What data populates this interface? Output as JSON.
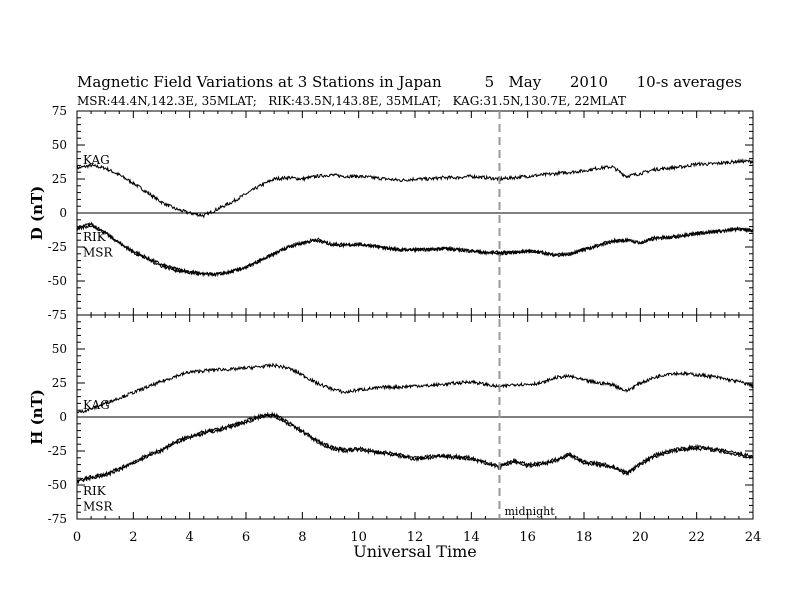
{
  "header": {
    "title_main": "Magnetic Field Variations at 3 Stations in Japan",
    "title_date_day": "5",
    "title_date_month": "May",
    "title_date_year": "2010",
    "title_sampling": "10-s averages",
    "subtitle": "MSR:44.4N,142.3E, 35MLAT;   RIK:43.5N,143.8E, 35MLAT;   KAG:31.5N,130.7E, 22MLAT"
  },
  "chart_data": [
    {
      "type": "line",
      "panel": "D",
      "ylabel": "D (nT)",
      "ylim": [
        -75,
        75
      ],
      "yticks": [
        75,
        50,
        25,
        0,
        -25,
        -50,
        -75
      ],
      "xlim": [
        0,
        24
      ],
      "zero_line": true,
      "series": [
        {
          "name": "KAG",
          "x": [
            0,
            0.5,
            1,
            1.5,
            2,
            2.5,
            3,
            3.5,
            4,
            4.5,
            5,
            5.5,
            6,
            6.5,
            7,
            7.5,
            8,
            8.5,
            9,
            9.5,
            10,
            10.5,
            11,
            11.5,
            12,
            12.5,
            13,
            13.5,
            14,
            14.5,
            15,
            15.5,
            16,
            16.5,
            17,
            17.5,
            18,
            18.5,
            19,
            19.5,
            20,
            20.5,
            21,
            21.5,
            22,
            22.5,
            23,
            23.5,
            24
          ],
          "y": [
            33,
            35,
            33,
            28,
            22,
            15,
            8,
            3,
            0,
            -2,
            3,
            8,
            14,
            20,
            25,
            26,
            25,
            27,
            28,
            27,
            27,
            26,
            25,
            24,
            25,
            25,
            26,
            26,
            27,
            26,
            25,
            26,
            27,
            28,
            29,
            30,
            31,
            33,
            34,
            27,
            29,
            32,
            33,
            34,
            36,
            36,
            37,
            38,
            38
          ]
        },
        {
          "name": "RIK",
          "x": [
            0,
            0.5,
            1,
            1.5,
            2,
            2.5,
            3,
            3.5,
            4,
            4.5,
            5,
            5.5,
            6,
            6.5,
            7,
            7.5,
            8,
            8.5,
            9,
            9.5,
            10,
            10.5,
            11,
            11.5,
            12,
            12.5,
            13,
            13.5,
            14,
            14.5,
            15,
            15.5,
            16,
            16.5,
            17,
            17.5,
            18,
            18.5,
            19,
            19.5,
            20,
            20.5,
            21,
            21.5,
            22,
            22.5,
            23,
            23.5,
            24
          ],
          "y": [
            -11,
            -8,
            -15,
            -22,
            -28,
            -33,
            -38,
            -41,
            -43,
            -45,
            -45,
            -43,
            -40,
            -35,
            -30,
            -25,
            -22,
            -20,
            -23,
            -24,
            -23,
            -24,
            -26,
            -27,
            -27,
            -27,
            -26,
            -27,
            -28,
            -29,
            -29,
            -29,
            -28,
            -29,
            -31,
            -30,
            -27,
            -24,
            -21,
            -20,
            -22,
            -19,
            -18,
            -17,
            -15,
            -14,
            -13,
            -12,
            -13
          ]
        },
        {
          "name": "MSR",
          "x": [
            0,
            0.5,
            1,
            1.5,
            2,
            2.5,
            3,
            3.5,
            4,
            4.5,
            5,
            5.5,
            6,
            6.5,
            7,
            7.5,
            8,
            8.5,
            9,
            9.5,
            10,
            10.5,
            11,
            11.5,
            12,
            12.5,
            13,
            13.5,
            14,
            14.5,
            15,
            15.5,
            16,
            16.5,
            17,
            17.5,
            18,
            18.5,
            19,
            19.5,
            20,
            20.5,
            21,
            21.5,
            22,
            22.5,
            23,
            23.5,
            24
          ],
          "y": [
            -12,
            -9,
            -14,
            -22,
            -29,
            -34,
            -39,
            -42,
            -44,
            -45,
            -45,
            -43,
            -40,
            -35,
            -30,
            -25,
            -22,
            -19,
            -23,
            -23,
            -23,
            -24,
            -26,
            -27,
            -27,
            -27,
            -26,
            -27,
            -28,
            -29,
            -30,
            -29,
            -28,
            -29,
            -31,
            -30,
            -27,
            -24,
            -20,
            -20,
            -22,
            -18,
            -18,
            -16,
            -15,
            -14,
            -13,
            -11,
            -13
          ]
        }
      ],
      "labels": [
        "KAG",
        "RIK",
        "MSR"
      ]
    },
    {
      "type": "line",
      "panel": "H",
      "ylabel": "H (nT)",
      "ylim": [
        -75,
        75
      ],
      "yticks": [
        75,
        50,
        25,
        0,
        -25,
        -50,
        -75
      ],
      "xlim": [
        0,
        24
      ],
      "zero_line": true,
      "series": [
        {
          "name": "KAG",
          "x": [
            0,
            0.5,
            1,
            1.5,
            2,
            2.5,
            3,
            3.5,
            4,
            4.5,
            5,
            5.5,
            6,
            6.5,
            7,
            7.5,
            8,
            8.5,
            9,
            9.5,
            10,
            10.5,
            11,
            11.5,
            12,
            12.5,
            13,
            13.5,
            14,
            14.5,
            15,
            15.5,
            16,
            16.5,
            17,
            17.5,
            18,
            18.5,
            19,
            19.5,
            20,
            20.5,
            21,
            21.5,
            22,
            22.5,
            23,
            23.5,
            24
          ],
          "y": [
            3,
            6,
            10,
            14,
            18,
            22,
            26,
            30,
            33,
            34,
            35,
            35,
            36,
            37,
            38,
            36,
            31,
            25,
            21,
            18,
            20,
            21,
            22,
            22,
            23,
            23,
            24,
            25,
            26,
            24,
            22,
            24,
            24,
            25,
            29,
            30,
            27,
            25,
            24,
            19,
            25,
            29,
            32,
            32,
            31,
            30,
            28,
            26,
            23
          ]
        },
        {
          "name": "RIK",
          "x": [
            0,
            0.5,
            1,
            1.5,
            2,
            2.5,
            3,
            3.5,
            4,
            4.5,
            5,
            5.5,
            6,
            6.5,
            7,
            7.5,
            8,
            8.5,
            9,
            9.5,
            10,
            10.5,
            11,
            11.5,
            12,
            12.5,
            13,
            13.5,
            14,
            14.5,
            15,
            15.5,
            16,
            16.5,
            17,
            17.5,
            18,
            18.5,
            19,
            19.5,
            20,
            20.5,
            21,
            21.5,
            22,
            22.5,
            23,
            23.5,
            24
          ],
          "y": [
            -47,
            -44,
            -42,
            -38,
            -33,
            -28,
            -24,
            -18,
            -14,
            -11,
            -9,
            -6,
            -3,
            1,
            2,
            -4,
            -10,
            -17,
            -22,
            -24,
            -23,
            -25,
            -26,
            -28,
            -30,
            -29,
            -28,
            -29,
            -30,
            -33,
            -36,
            -32,
            -35,
            -34,
            -31,
            -27,
            -33,
            -34,
            -36,
            -41,
            -34,
            -28,
            -25,
            -23,
            -22,
            -23,
            -25,
            -27,
            -29
          ]
        },
        {
          "name": "MSR",
          "x": [
            0,
            0.5,
            1,
            1.5,
            2,
            2.5,
            3,
            3.5,
            4,
            4.5,
            5,
            5.5,
            6,
            6.5,
            7,
            7.5,
            8,
            8.5,
            9,
            9.5,
            10,
            10.5,
            11,
            11.5,
            12,
            12.5,
            13,
            13.5,
            14,
            14.5,
            15,
            15.5,
            16,
            16.5,
            17,
            17.5,
            18,
            18.5,
            19,
            19.5,
            20,
            20.5,
            21,
            21.5,
            22,
            22.5,
            23,
            23.5,
            24
          ],
          "y": [
            -48,
            -45,
            -43,
            -39,
            -34,
            -29,
            -25,
            -19,
            -15,
            -12,
            -10,
            -7,
            -4,
            0,
            1,
            -5,
            -11,
            -18,
            -23,
            -25,
            -24,
            -26,
            -27,
            -29,
            -31,
            -30,
            -29,
            -30,
            -31,
            -34,
            -37,
            -33,
            -36,
            -35,
            -32,
            -28,
            -34,
            -35,
            -37,
            -42,
            -35,
            -29,
            -26,
            -24,
            -23,
            -24,
            -26,
            -28,
            -30
          ]
        }
      ],
      "labels": [
        "KAG",
        "RIK",
        "MSR"
      ]
    }
  ],
  "xaxis": {
    "label": "Universal Time",
    "ticks": [
      0,
      2,
      4,
      6,
      8,
      10,
      12,
      14,
      16,
      18,
      20,
      22,
      24
    ],
    "minor_step": 0.5
  },
  "marker": {
    "x": 15,
    "label": "midnight",
    "color": "#999999"
  },
  "colors": {
    "line": "#000000",
    "axis": "#000000",
    "marker": "#999999"
  }
}
